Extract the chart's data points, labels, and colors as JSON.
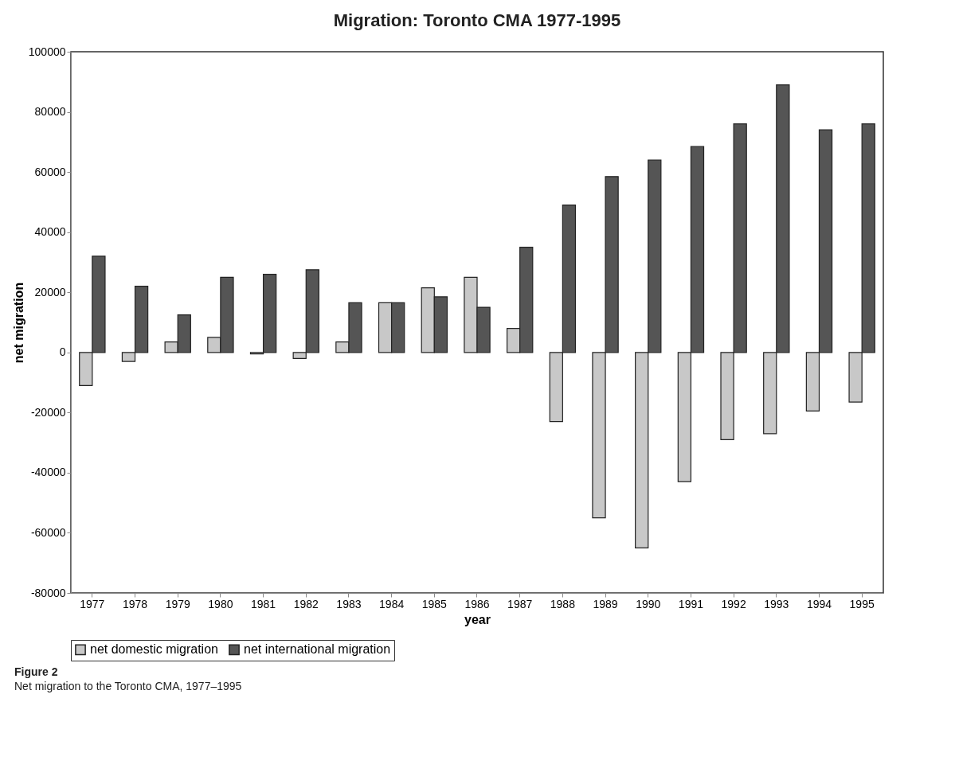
{
  "chart_data": {
    "type": "bar",
    "title": "Migration:  Toronto CMA 1977-1995",
    "xlabel": "year",
    "ylabel": "net migration",
    "categories": [
      "1977",
      "1978",
      "1979",
      "1980",
      "1981",
      "1982",
      "1983",
      "1984",
      "1985",
      "1986",
      "1987",
      "1988",
      "1989",
      "1990",
      "1991",
      "1992",
      "1993",
      "1994",
      "1995"
    ],
    "series": [
      {
        "name": "net domestic migration",
        "color": "#c8c8c8",
        "values": [
          -11000,
          -3000,
          3500,
          5000,
          -500,
          -2000,
          3500,
          16500,
          21500,
          25000,
          8000,
          -23000,
          -55000,
          -65000,
          -43000,
          -29000,
          -27000,
          -19500,
          -16500
        ]
      },
      {
        "name": "net international migration",
        "color": "#555555",
        "values": [
          32000,
          22000,
          12500,
          25000,
          26000,
          27500,
          16500,
          16500,
          18500,
          15000,
          35000,
          49000,
          58500,
          64000,
          68500,
          76000,
          89000,
          74000,
          76000
        ]
      }
    ],
    "ylim": [
      -80000,
      100000
    ],
    "yticks": [
      -80000,
      -60000,
      -40000,
      -20000,
      0,
      20000,
      40000,
      60000,
      80000,
      100000
    ],
    "grid": false,
    "legend": "bottom",
    "annotations": [
      "Figure 2",
      "Net migration to the Toronto CMA, 1977–1995"
    ]
  }
}
